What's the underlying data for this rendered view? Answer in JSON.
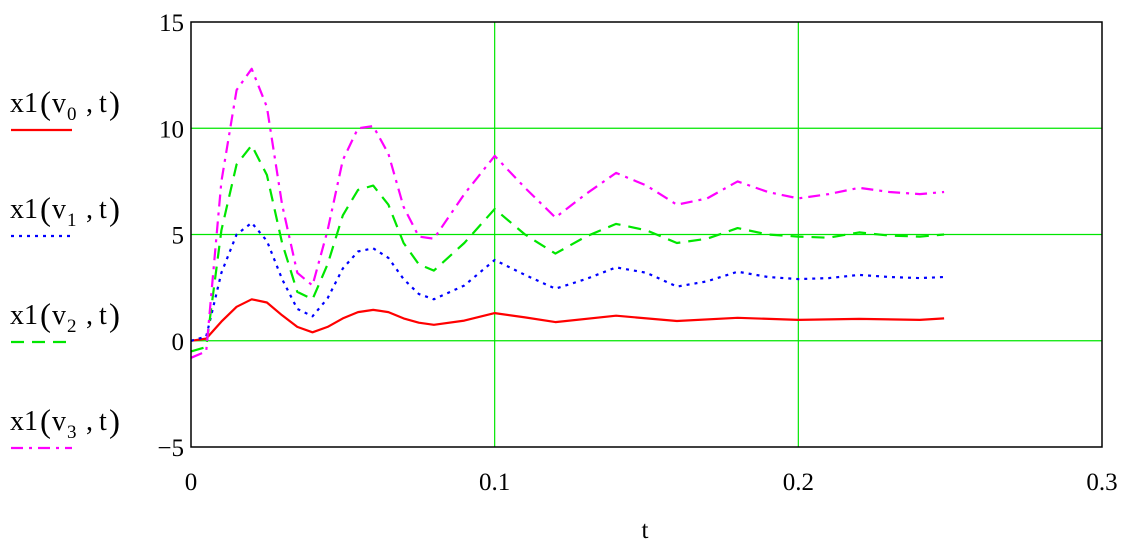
{
  "chart_data": {
    "type": "line",
    "xlabel": "t",
    "xlim": [
      0,
      0.3
    ],
    "ylim": [
      -5,
      15
    ],
    "x_ticks": [
      "0",
      "0.1",
      "0.2",
      "0.3"
    ],
    "y_ticks": [
      "−5",
      "0",
      "5",
      "10",
      "15"
    ],
    "grid": true,
    "grid_color": "#00e600",
    "legend_position": "left",
    "series": [
      {
        "name": "x1(v0,t)",
        "legend_base": "x1",
        "legend_var": "v",
        "legend_sub": "0",
        "legend_arg": "t",
        "color": "#ff0000",
        "dash": "solid",
        "x": [
          0,
          0.005,
          0.01,
          0.015,
          0.02,
          0.025,
          0.03,
          0.035,
          0.04,
          0.045,
          0.05,
          0.055,
          0.06,
          0.065,
          0.07,
          0.075,
          0.08,
          0.09,
          0.1,
          0.11,
          0.12,
          0.14,
          0.16,
          0.18,
          0.2,
          0.22,
          0.24,
          0.248
        ],
        "y": [
          0,
          0.1,
          0.9,
          1.6,
          1.95,
          1.8,
          1.2,
          0.65,
          0.4,
          0.65,
          1.05,
          1.35,
          1.45,
          1.35,
          1.05,
          0.85,
          0.75,
          0.95,
          1.3,
          1.1,
          0.88,
          1.18,
          0.93,
          1.08,
          0.98,
          1.03,
          0.98,
          1.05
        ]
      },
      {
        "name": "x1(v1,t)",
        "legend_base": "x1",
        "legend_var": "v",
        "legend_sub": "1",
        "legend_arg": "t",
        "color": "#0000ff",
        "dash": "dotted",
        "x": [
          0,
          0.005,
          0.01,
          0.015,
          0.02,
          0.025,
          0.03,
          0.035,
          0.04,
          0.045,
          0.05,
          0.055,
          0.06,
          0.065,
          0.07,
          0.075,
          0.08,
          0.09,
          0.1,
          0.11,
          0.12,
          0.13,
          0.14,
          0.15,
          0.16,
          0.17,
          0.18,
          0.19,
          0.2,
          0.21,
          0.22,
          0.23,
          0.24,
          0.248
        ],
        "y": [
          0,
          0.2,
          3.2,
          5.0,
          5.55,
          4.7,
          2.9,
          1.5,
          1.15,
          2.0,
          3.4,
          4.2,
          4.35,
          3.9,
          2.9,
          2.2,
          1.95,
          2.6,
          3.8,
          3.1,
          2.45,
          2.9,
          3.45,
          3.2,
          2.55,
          2.8,
          3.25,
          3.0,
          2.9,
          2.95,
          3.1,
          3.0,
          2.95,
          3.0
        ]
      },
      {
        "name": "x1(v2,t)",
        "legend_base": "x1",
        "legend_var": "v",
        "legend_sub": "2",
        "legend_arg": "t",
        "color": "#00e600",
        "dash": "dashed",
        "x": [
          0,
          0.005,
          0.01,
          0.015,
          0.02,
          0.025,
          0.03,
          0.035,
          0.04,
          0.045,
          0.05,
          0.055,
          0.06,
          0.065,
          0.07,
          0.075,
          0.08,
          0.09,
          0.1,
          0.11,
          0.12,
          0.13,
          0.14,
          0.15,
          0.16,
          0.17,
          0.18,
          0.19,
          0.2,
          0.21,
          0.22,
          0.23,
          0.24,
          0.248
        ],
        "y": [
          -0.5,
          -0.3,
          5.2,
          8.3,
          9.2,
          7.8,
          4.6,
          2.3,
          1.95,
          3.6,
          5.9,
          7.1,
          7.3,
          6.4,
          4.6,
          3.6,
          3.3,
          4.6,
          6.2,
          5.0,
          4.1,
          4.9,
          5.5,
          5.2,
          4.6,
          4.8,
          5.3,
          5.0,
          4.9,
          4.85,
          5.1,
          4.95,
          4.9,
          5.0
        ]
      },
      {
        "name": "x1(v3,t)",
        "legend_base": "x1",
        "legend_var": "v",
        "legend_sub": "3",
        "legend_arg": "t",
        "color": "#ff00ff",
        "dash": "dashdot",
        "x": [
          0,
          0.005,
          0.01,
          0.015,
          0.02,
          0.025,
          0.03,
          0.035,
          0.04,
          0.045,
          0.05,
          0.055,
          0.06,
          0.065,
          0.07,
          0.075,
          0.08,
          0.09,
          0.1,
          0.11,
          0.12,
          0.13,
          0.14,
          0.15,
          0.16,
          0.17,
          0.18,
          0.19,
          0.2,
          0.21,
          0.22,
          0.23,
          0.24,
          0.248
        ],
        "y": [
          -0.8,
          -0.5,
          7.5,
          11.8,
          12.8,
          11.0,
          6.4,
          3.2,
          2.6,
          5.2,
          8.5,
          10.0,
          10.1,
          8.8,
          6.3,
          4.9,
          4.8,
          6.9,
          8.7,
          7.2,
          5.8,
          6.9,
          7.9,
          7.3,
          6.4,
          6.7,
          7.5,
          7.0,
          6.7,
          6.9,
          7.2,
          7.0,
          6.9,
          7.0
        ]
      }
    ]
  }
}
